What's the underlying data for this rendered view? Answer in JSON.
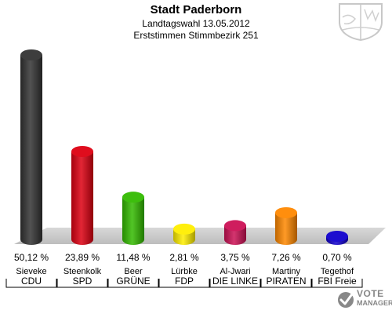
{
  "header": {
    "title": "Stadt Paderborn",
    "subtitle_line1": "Landtagswahl 13.05.2012",
    "subtitle_line2": "Erststimmen Stimmbezirk 251"
  },
  "chart_data": {
    "type": "bar",
    "title": "Stadt Paderborn",
    "subtitle": "Landtagswahl 13.05.2012 — Erststimmen Stimmbezirk 251",
    "xlabel": "",
    "ylabel": "",
    "ylim": [
      0,
      55
    ],
    "grid": false,
    "legend": "none",
    "categories": [
      "CDU",
      "SPD",
      "GRÜNE",
      "FDP",
      "DIE LINKE",
      "PIRATEN",
      "FBI Freie"
    ],
    "candidates": [
      "Sieveke",
      "Steenkolk",
      "Beer",
      "Lürbke",
      "Al-Jwari",
      "Martiny",
      "Tegethof"
    ],
    "values": [
      50.12,
      23.89,
      11.48,
      2.81,
      3.75,
      7.26,
      0.7
    ],
    "value_labels": [
      "50,12 %",
      "23,89 %",
      "11,48 %",
      "2,81 %",
      "3,75 %",
      "7,26 %",
      "0,70 %"
    ],
    "colors": [
      "#333333",
      "#dd0011",
      "#33bb00",
      "#ffee00",
      "#cc1155",
      "#ff8800",
      "#1100cc"
    ]
  },
  "branding": {
    "watermark_line1": "VOTE",
    "watermark_line2": "MANAGER",
    "crest_icon": "nrw-coat-of-arms-icon",
    "watermark_icon": "vote-check-icon"
  }
}
